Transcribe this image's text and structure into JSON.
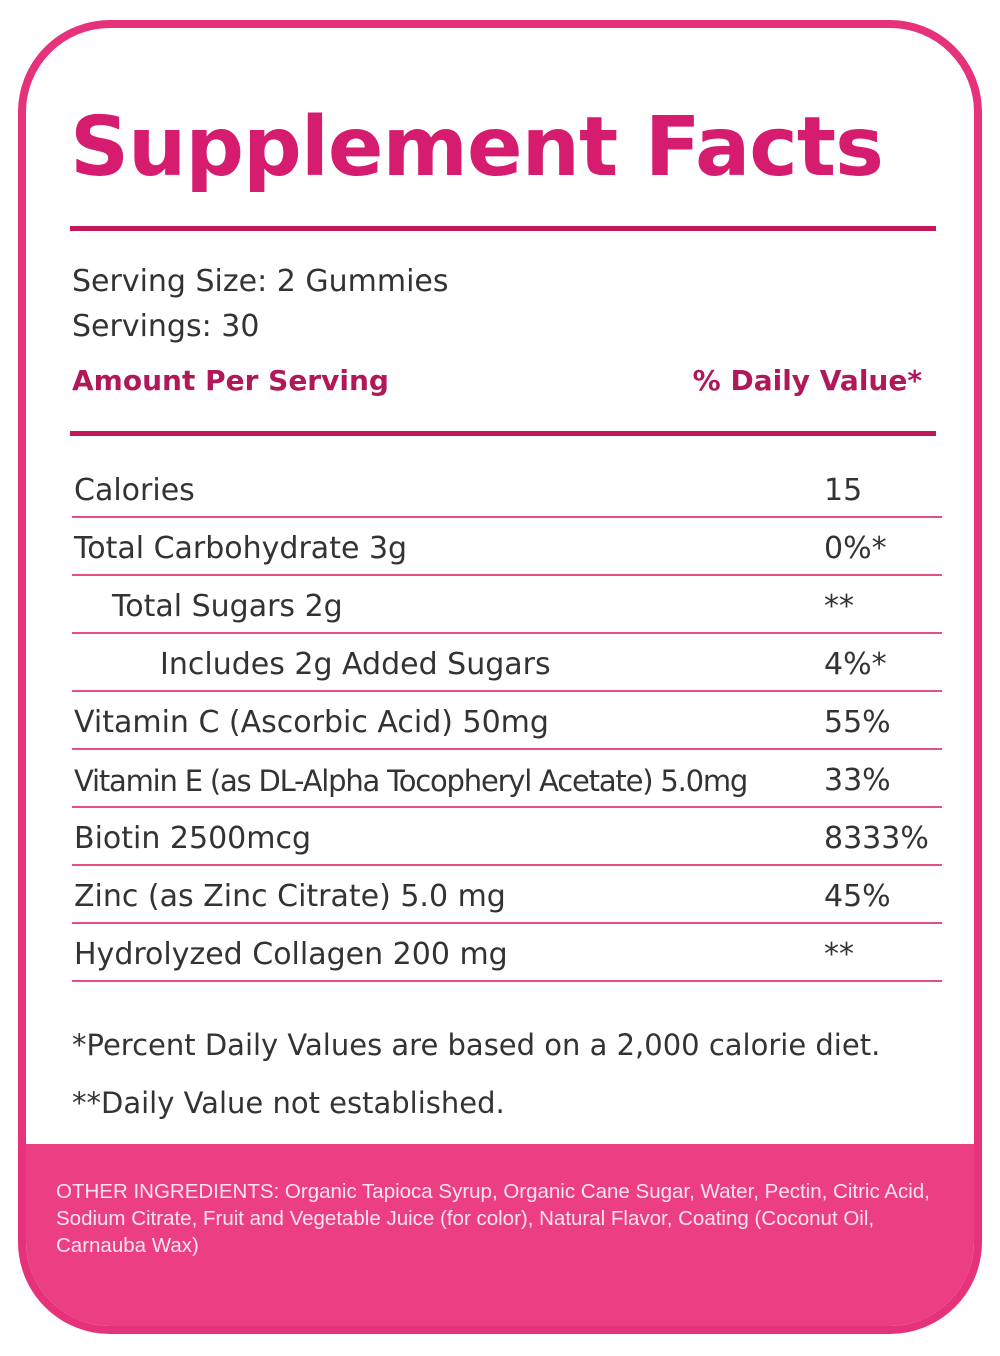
{
  "title": "Supplement Facts",
  "serving": {
    "size": "Serving Size: 2 Gummies",
    "servings": "Servings: 30"
  },
  "headers": {
    "amount": "Amount Per Serving",
    "daily_value": "% Daily Value*"
  },
  "rows": [
    {
      "name": "Calories",
      "dv": "15"
    },
    {
      "name": "Total Carbohydrate 3g",
      "dv": "0%*"
    },
    {
      "name": "Total Sugars 2g",
      "dv": "**"
    },
    {
      "name": "Includes 2g Added Sugars",
      "dv": "4%*"
    },
    {
      "name": "Vitamin C (Ascorbic Acid) 50mg",
      "dv": "55%"
    },
    {
      "name": "Vitamin E (as DL-Alpha Tocopheryl Acetate) 5.0mg",
      "dv": "33%"
    },
    {
      "name": "Biotin 2500mcg",
      "dv": "8333%"
    },
    {
      "name": "Zinc (as Zinc Citrate) 5.0 mg",
      "dv": "45%"
    },
    {
      "name": "Hydrolyzed Collagen 200 mg",
      "dv": "**"
    }
  ],
  "footnotes": {
    "percent": "*Percent Daily Values are based on a 2,000 calorie diet.",
    "not_established": "**Daily Value not established."
  },
  "ingredients": "OTHER INGREDIENTS: Organic Tapioca Syrup, Organic Cane Sugar, Water, Pectin, Citric Acid, Sodium Citrate, Fruit and Vegetable Juice (for color), Natural Flavor, Coating (Coconut Oil, Carnauba Wax)",
  "colors": {
    "border": "#e6327a",
    "title": "#d61c6e",
    "band": "#ec3f83"
  }
}
